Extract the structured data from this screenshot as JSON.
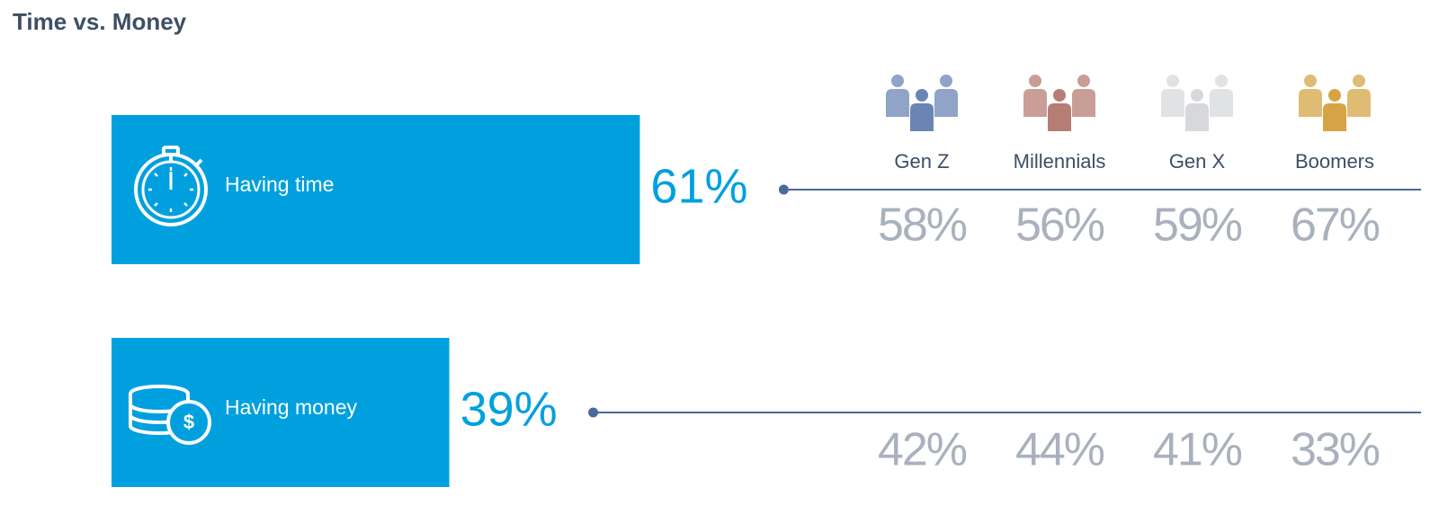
{
  "chart_data": {
    "type": "bar",
    "title": "Time vs. Money",
    "categories": [
      "Having time",
      "Having money"
    ],
    "values": [
      61,
      39
    ],
    "value_labels": [
      "61%",
      "39%"
    ],
    "color": "#00a0df",
    "series": [
      {
        "name": "Gen Z",
        "color": "#6a85b4",
        "values": [
          58,
          42
        ],
        "value_labels": [
          "58%",
          "42%"
        ]
      },
      {
        "name": "Millennials",
        "color": "#b57d73",
        "values": [
          56,
          44
        ],
        "value_labels": [
          "56%",
          "44%"
        ]
      },
      {
        "name": "Gen X",
        "color": "#d6d8db",
        "values": [
          59,
          41
        ],
        "value_labels": [
          "59%",
          "41%"
        ]
      },
      {
        "name": "Boomers",
        "color": "#d6a444",
        "values": [
          67,
          33
        ],
        "value_labels": [
          "67%",
          "33%"
        ]
      }
    ]
  }
}
